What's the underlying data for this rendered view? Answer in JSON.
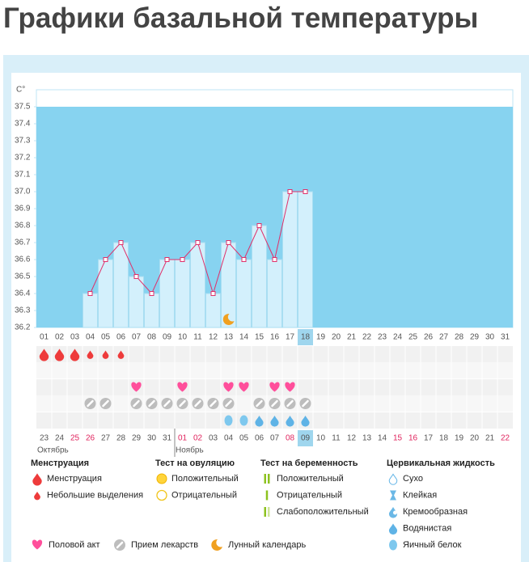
{
  "title": "Графики базальной температуры",
  "chart_data": {
    "type": "line",
    "y_label": "C°",
    "categories": [
      "01",
      "02",
      "03",
      "04",
      "05",
      "06",
      "07",
      "08",
      "09",
      "10",
      "11",
      "12",
      "13",
      "14",
      "15",
      "16",
      "17",
      "18",
      "19",
      "20",
      "21",
      "22",
      "23",
      "24",
      "25",
      "26",
      "27",
      "28",
      "29",
      "30",
      "31"
    ],
    "values": [
      null,
      null,
      null,
      36.4,
      36.6,
      36.7,
      36.5,
      36.4,
      36.6,
      36.6,
      36.7,
      36.4,
      36.7,
      36.6,
      36.8,
      36.6,
      37.0,
      37.0,
      null,
      null,
      null,
      null,
      null,
      null,
      null,
      null,
      null,
      null,
      null,
      null,
      null
    ],
    "ylim": [
      36.2,
      37.6
    ],
    "yticks": [
      36.2,
      36.3,
      36.4,
      36.5,
      36.6,
      36.7,
      36.8,
      36.9,
      {
        "value": 37,
        "label": "37.0"
      },
      37.1,
      37.2,
      37.3,
      37.4,
      37.5
    ],
    "selected": "18",
    "line_color": "#e0306a",
    "bar_color": "#d3f0fc",
    "background_color": "#87d3f0",
    "events": {
      "menstruation": [
        "heavy",
        "heavy",
        "heavy",
        "light",
        "light",
        "light",
        null,
        null,
        null,
        null,
        null,
        null,
        null,
        null,
        null,
        null,
        null,
        null,
        null,
        null,
        null,
        null,
        null,
        null,
        null,
        null,
        null,
        null,
        null,
        null,
        null
      ],
      "intercourse": [
        false,
        false,
        false,
        false,
        false,
        false,
        true,
        false,
        false,
        true,
        false,
        false,
        true,
        true,
        false,
        true,
        true,
        false,
        false,
        false,
        false,
        false,
        false,
        false,
        false,
        false,
        false,
        false,
        false,
        false,
        false
      ],
      "medication": [
        false,
        false,
        false,
        true,
        true,
        false,
        true,
        true,
        true,
        true,
        true,
        true,
        true,
        false,
        true,
        true,
        true,
        true,
        false,
        false,
        false,
        false,
        false,
        false,
        false,
        false,
        false,
        false,
        false,
        false,
        false
      ],
      "cervical_fluid": [
        null,
        null,
        null,
        null,
        null,
        null,
        null,
        null,
        null,
        null,
        null,
        null,
        "egg_white",
        "egg_white",
        "watery",
        "watery",
        "watery",
        "watery",
        null,
        null,
        null,
        null,
        null,
        null,
        null,
        null,
        null,
        null,
        null,
        null,
        null
      ],
      "lunar": [
        false,
        false,
        false,
        false,
        false,
        false,
        false,
        false,
        false,
        false,
        false,
        false,
        true,
        false,
        false,
        false,
        false,
        false,
        false,
        false,
        false,
        false,
        false,
        false,
        false,
        false,
        false,
        false,
        false,
        false,
        false
      ]
    },
    "cycle_dates": [
      {
        "label": "23",
        "weekend": false
      },
      {
        "label": "24",
        "weekend": false
      },
      {
        "label": "25",
        "weekend": true
      },
      {
        "label": "26",
        "weekend": true
      },
      {
        "label": "27",
        "weekend": false
      },
      {
        "label": "28",
        "weekend": false
      },
      {
        "label": "29",
        "weekend": false
      },
      {
        "label": "30",
        "weekend": false
      },
      {
        "label": "31",
        "weekend": false
      },
      {
        "label": "01",
        "weekend": true
      },
      {
        "label": "02",
        "weekend": true
      },
      {
        "label": "03",
        "weekend": false
      },
      {
        "label": "04",
        "weekend": false
      },
      {
        "label": "05",
        "weekend": false
      },
      {
        "label": "06",
        "weekend": false
      },
      {
        "label": "07",
        "weekend": false
      },
      {
        "label": "08",
        "weekend": true
      },
      {
        "label": "09",
        "weekend": false
      },
      {
        "label": "10",
        "weekend": false
      },
      {
        "label": "11",
        "weekend": false
      },
      {
        "label": "12",
        "weekend": false
      },
      {
        "label": "13",
        "weekend": false
      },
      {
        "label": "14",
        "weekend": false
      },
      {
        "label": "15",
        "weekend": true
      },
      {
        "label": "16",
        "weekend": true
      },
      {
        "label": "17",
        "weekend": false
      },
      {
        "label": "18",
        "weekend": false
      },
      {
        "label": "19",
        "weekend": false
      },
      {
        "label": "20",
        "weekend": false
      },
      {
        "label": "21",
        "weekend": false
      },
      {
        "label": "22",
        "weekend": true
      }
    ],
    "cycle_selected": "09",
    "months": [
      {
        "label": "Октябрь",
        "start": "23"
      },
      {
        "label": "Ноябрь",
        "start": "01"
      }
    ]
  },
  "legend": {
    "sections": [
      {
        "title": "Менструация",
        "items": [
          {
            "label": "Менструация",
            "icon": "heavy"
          },
          {
            "label": "Небольшие выделения",
            "icon": "light"
          }
        ]
      },
      {
        "title": "Тест на овуляцию",
        "items": [
          {
            "label": "Положительный",
            "icon": "ov_pos"
          },
          {
            "label": "Отрицательный",
            "icon": "ov_neg"
          }
        ]
      },
      {
        "title": "Тест на беременность",
        "items": [
          {
            "label": "Положительный",
            "icon": "pr_pos"
          },
          {
            "label": "Отрицательный",
            "icon": "pr_neg"
          },
          {
            "label": "Слабоположительный",
            "icon": "pr_weak"
          }
        ]
      },
      {
        "title": "Цервикальная жидкость",
        "items": [
          {
            "label": "Сухо",
            "icon": "dry"
          },
          {
            "label": "Клейкая",
            "icon": "sticky"
          },
          {
            "label": "Кремообразная",
            "icon": "creamy"
          },
          {
            "label": "Водянистая",
            "icon": "watery"
          },
          {
            "label": "Яичный белок",
            "icon": "egg_white"
          }
        ]
      }
    ],
    "bottom": [
      {
        "label": "Половой акт",
        "icon": "heart"
      },
      {
        "label": "Прием лекарств",
        "icon": "pill"
      },
      {
        "label": "Лунный календарь",
        "icon": "moon"
      }
    ]
  }
}
